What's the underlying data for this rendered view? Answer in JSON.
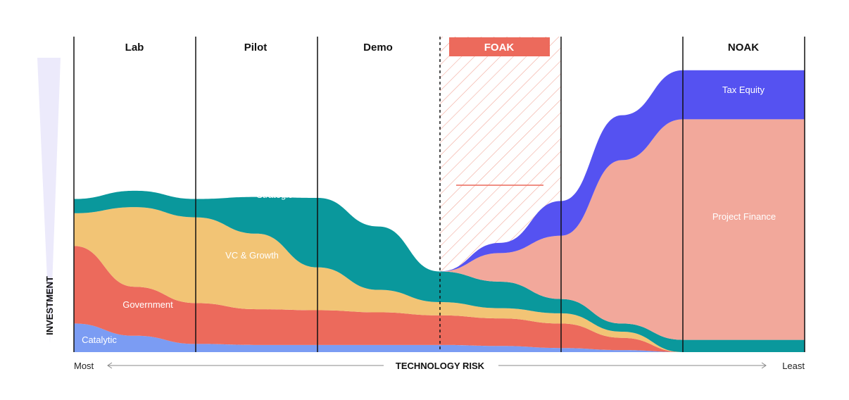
{
  "chart_data": {
    "type": "area",
    "stacked": true,
    "stages": [
      "Lab",
      "Pilot",
      "Demo",
      "FOAK",
      "",
      "NOAK"
    ],
    "highlight_stage": "FOAK",
    "x_axis": {
      "title": "TECHNOLOGY RISK",
      "left_label": "Most",
      "right_label": "Least",
      "direction": "risk decreases left to right"
    },
    "y_axis": {
      "title": "INVESTMENT"
    },
    "x_stops": [
      0,
      0.5,
      1,
      1.5,
      2,
      2.5,
      3,
      3.5,
      4,
      4.5,
      5,
      5.5,
      6
    ],
    "series": [
      {
        "name": "Catalytic",
        "color": "#7B9CF3",
        "values": [
          14,
          8,
          4,
          3.5,
          3.5,
          3.5,
          3.5,
          3,
          2,
          1,
          0,
          0,
          0
        ]
      },
      {
        "name": "Government",
        "color": "#EC6A5C",
        "values": [
          38,
          24,
          20,
          17.5,
          17,
          16,
          14.5,
          13.5,
          12,
          6,
          0,
          0,
          0
        ]
      },
      {
        "name": "VC & Growth",
        "color": "#F2C475",
        "values": [
          16,
          39,
          42,
          37,
          21,
          11,
          6.5,
          5,
          5,
          3,
          0,
          0,
          0
        ]
      },
      {
        "name": "Strategic",
        "color": "#0A989C",
        "values": [
          7,
          8,
          9,
          18,
          34,
          31,
          15,
          13,
          7,
          4,
          6,
          6,
          6
        ]
      },
      {
        "name": "Project Finance",
        "color": "#F2A89B",
        "values": [
          0,
          0,
          0,
          0,
          0,
          0,
          0,
          14,
          31,
          80,
          108,
          108,
          108
        ]
      },
      {
        "name": "Tax Equity",
        "color": "#5552F1",
        "values": [
          0,
          0,
          0,
          0,
          0,
          0,
          0,
          5,
          17,
          22,
          24,
          24,
          24
        ]
      }
    ],
    "y_range": [
      0,
      140
    ],
    "legend": "inline labels",
    "grid": false
  },
  "colors": {
    "foak_badge": "#EC6A5C",
    "hatch": "#F2A89B",
    "axis_arrow": "#888888",
    "investment_wedge": "#ECEAFB"
  }
}
